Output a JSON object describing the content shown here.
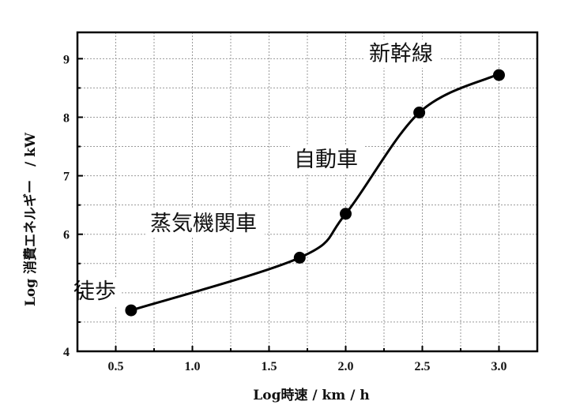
{
  "chart_data": {
    "type": "scatter",
    "xlabel": "Log時速 / km / h",
    "ylabel": "Log 消費エネルギー　/ kW",
    "xlim": [
      0.25,
      3.25
    ],
    "ylim": [
      4,
      9.45
    ],
    "grid": true,
    "x_ticks": [
      0.5,
      1.0,
      1.5,
      2.0,
      2.5,
      3.0
    ],
    "x_tick_labels": [
      "0.5",
      "1.0",
      "1.5",
      "2.0",
      "2.5",
      "3.0"
    ],
    "y_ticks": [
      4,
      6,
      7,
      8,
      9
    ],
    "y_tick_labels": [
      "4",
      "6",
      "7",
      "8",
      "9"
    ],
    "series": [
      {
        "x": [
          0.6,
          1.7,
          2.0,
          2.48,
          3.0
        ],
        "y": [
          4.7,
          5.6,
          6.35,
          8.08,
          8.72
        ],
        "color": "#000000"
      }
    ],
    "annotations": [
      {
        "text": "徒歩",
        "x": 0.6,
        "y": 4.7
      },
      {
        "text": "蒸気機関車",
        "x": 1.7,
        "y": 5.6
      },
      {
        "text": "自動車",
        "x": 2.0,
        "y": 6.35
      },
      {
        "text": "新幹線",
        "x": 3.0,
        "y": 8.72
      }
    ]
  }
}
